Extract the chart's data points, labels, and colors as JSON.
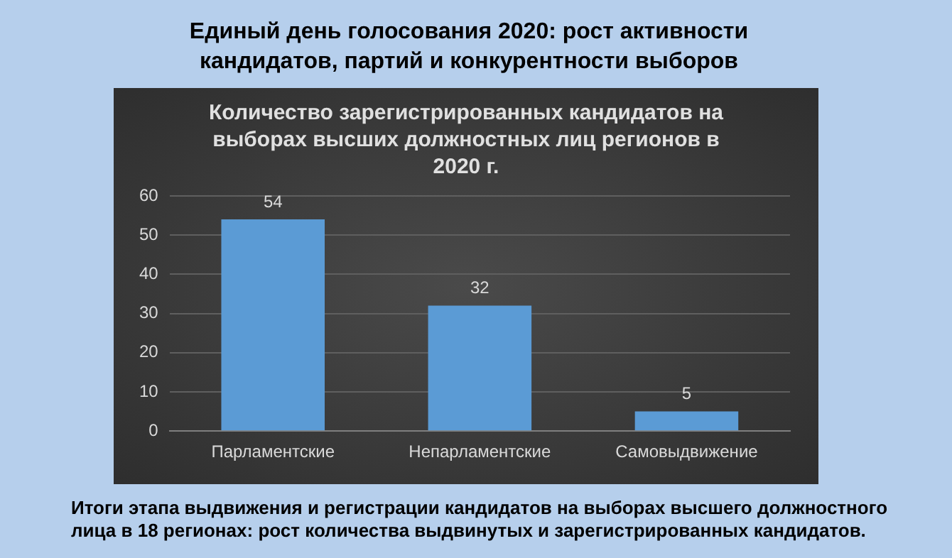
{
  "chart_data": {
    "type": "bar",
    "title": "Единый день голосования 2020:  рост активности кандидатов, партий и конкурентности выборов",
    "subtitle": "Количество зарегистрированных кандидатов на выборах высших должностных лиц регионов в 2020 г.",
    "categories": [
      "Парламентские",
      "Непарламентские",
      "Самовыдвижение"
    ],
    "values": [
      54,
      32,
      5
    ],
    "color": "#5b9bd5",
    "ylim": [
      0,
      60
    ],
    "yticks": [
      0,
      10,
      20,
      30,
      40,
      50,
      60
    ],
    "grid": "y",
    "data_labels": true,
    "legend": false,
    "annotations": [
      "Итоги этапа выдвижения и регистрации кандидатов на выборах высшего должностного лица в 18 регионах: рост количества выдвинутых и зарегистрированных кандидатов."
    ]
  }
}
